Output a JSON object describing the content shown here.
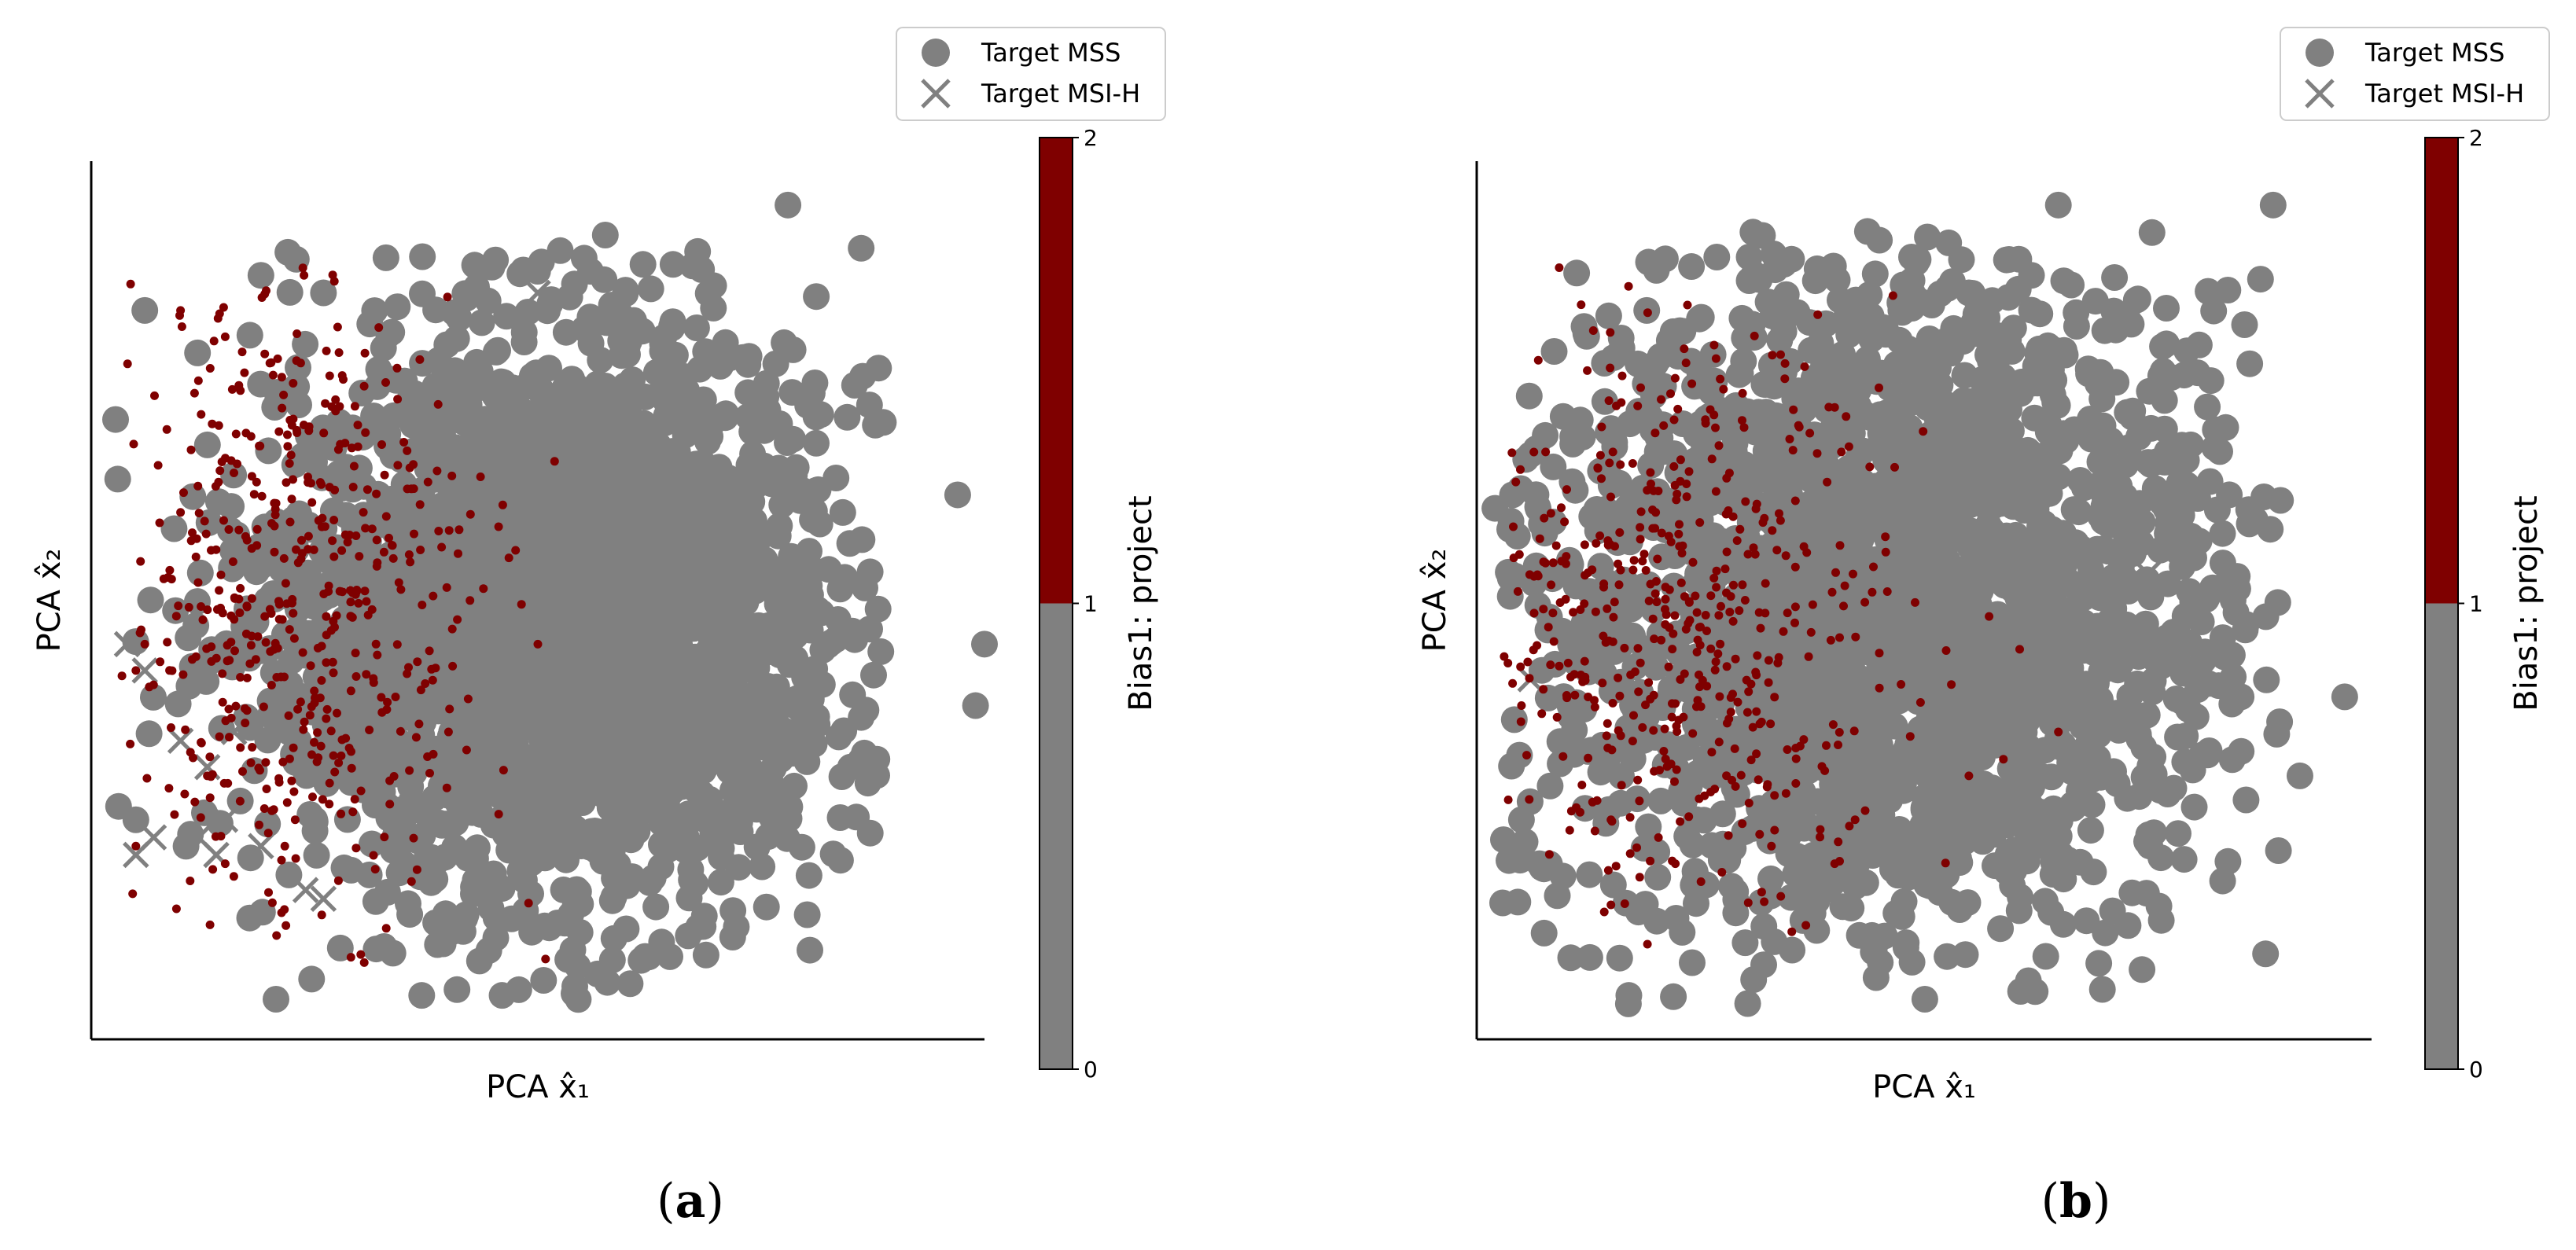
{
  "colors": {
    "mss_marker": "#808080",
    "bias_marker": "#7f0000",
    "colorbar_low": "#808080",
    "colorbar_high": "#7f0000",
    "axes": "#000000"
  },
  "chart_data": [
    {
      "type": "scatter",
      "panel": "a",
      "caption": "a",
      "xlabel": "PCA x̂₁",
      "ylabel": "PCA x̂₂",
      "xticks": [],
      "yticks": [],
      "legend": {
        "placement": "top-right outside",
        "entries": [
          {
            "label": "Target MSS",
            "marker": "circle",
            "color": "#808080"
          },
          {
            "label": "Target MSI-H",
            "marker": "x",
            "color": "#808080"
          }
        ]
      },
      "colorbar": {
        "label": "Bias1: project",
        "ticks": [
          "0",
          "1",
          "2"
        ],
        "range": [
          0,
          2
        ],
        "colors": [
          "#808080",
          "#7f0000"
        ]
      },
      "series": [
        {
          "marker": "circle",
          "points": [
            [
              0.78,
              0.95
            ],
            [
              0.06,
              0.83
            ],
            [
              0.97,
              0.62
            ],
            [
              1.0,
              0.45
            ],
            [
              0.99,
              0.38
            ],
            [
              0.05,
              0.25
            ],
            [
              0.37,
              0.05
            ],
            [
              0.46,
              0.05
            ],
            [
              0.85,
              0.31
            ],
            [
              0.33,
              0.89
            ],
            [
              0.19,
              0.87
            ],
            [
              0.26,
              0.85
            ],
            [
              0.59,
              0.82
            ],
            [
              0.65,
              0.81
            ],
            [
              0.59,
              0.24
            ],
            [
              0.35,
              0.2
            ]
          ]
        },
        {
          "marker": "x",
          "points": [
            [
              0.04,
              0.45
            ],
            [
              0.06,
              0.42
            ],
            [
              0.05,
              0.21
            ],
            [
              0.07,
              0.23
            ],
            [
              0.14,
              0.21
            ],
            [
              0.12,
              0.23
            ],
            [
              0.15,
              0.25
            ],
            [
              0.13,
              0.31
            ],
            [
              0.19,
              0.22
            ],
            [
              0.24,
              0.17
            ],
            [
              0.26,
              0.16
            ],
            [
              0.1,
              0.34
            ],
            [
              0.16,
              0.35
            ],
            [
              0.5,
              0.85
            ]
          ]
        }
      ],
      "bias_points": [
        [
          0.1,
          0.83
        ],
        [
          0.12,
          0.75
        ],
        [
          0.15,
          0.8
        ],
        [
          0.2,
          0.77
        ],
        [
          0.1,
          0.6
        ],
        [
          0.05,
          0.42
        ],
        [
          0.06,
          0.45
        ],
        [
          0.05,
          0.22
        ],
        [
          0.15,
          0.2
        ],
        [
          0.3,
          0.55
        ],
        [
          0.4,
          0.35
        ],
        [
          0.5,
          0.45
        ],
        [
          0.35,
          0.68
        ],
        [
          0.13,
          0.3
        ]
      ],
      "cloud": {
        "x_center": 0.52,
        "y_center": 0.48,
        "x_spread": 0.17,
        "y_spread": 0.17,
        "bias_x_center": 0.23,
        "bias_y_center": 0.5,
        "bias_x_spread": 0.1,
        "bias_y_spread": 0.18
      }
    },
    {
      "type": "scatter",
      "panel": "b",
      "caption": "b",
      "xlabel": "PCA x̂₁",
      "ylabel": "PCA x̂₂",
      "xticks": [],
      "yticks": [],
      "legend": {
        "placement": "top-right outside",
        "entries": [
          {
            "label": "Target MSS",
            "marker": "circle",
            "color": "#808080"
          },
          {
            "label": "Target MSI-H",
            "marker": "x",
            "color": "#808080"
          }
        ]
      },
      "colorbar": {
        "label": "Bias1: project",
        "ticks": [
          "0",
          "1",
          "2"
        ],
        "range": [
          0,
          2
        ],
        "colors": [
          "#808080",
          "#7f0000"
        ]
      },
      "series": [
        {
          "marker": "circle",
          "points": [
            [
              0.65,
              0.95
            ],
            [
              0.89,
              0.95
            ],
            [
              0.45,
              0.91
            ],
            [
              0.24,
              0.88
            ],
            [
              0.55,
              0.85
            ],
            [
              0.62,
              0.87
            ],
            [
              0.6,
              0.81
            ],
            [
              0.19,
              0.83
            ],
            [
              0.42,
              0.82
            ],
            [
              0.97,
              0.39
            ],
            [
              0.92,
              0.3
            ],
            [
              0.07,
              0.2
            ],
            [
              0.17,
              0.05
            ],
            [
              0.3,
              0.11
            ],
            [
              0.48,
              0.11
            ],
            [
              0.05,
              0.25
            ]
          ]
        },
        {
          "marker": "x",
          "points": [
            [
              0.06,
              0.41
            ],
            [
              0.75,
              0.53
            ]
          ]
        }
      ],
      "bias_points": [
        [
          0.05,
          0.38
        ],
        [
          0.1,
          0.55
        ],
        [
          0.2,
          0.6
        ],
        [
          0.3,
          0.5
        ],
        [
          0.45,
          0.4
        ],
        [
          0.55,
          0.3
        ],
        [
          0.65,
          0.35
        ],
        [
          0.15,
          0.25
        ],
        [
          0.4,
          0.2
        ]
      ],
      "cloud": {
        "x_center": 0.46,
        "y_center": 0.5,
        "x_spread": 0.2,
        "y_spread": 0.19,
        "bias_x_center": 0.22,
        "bias_y_center": 0.48,
        "bias_x_spread": 0.13,
        "bias_y_spread": 0.17
      }
    }
  ]
}
